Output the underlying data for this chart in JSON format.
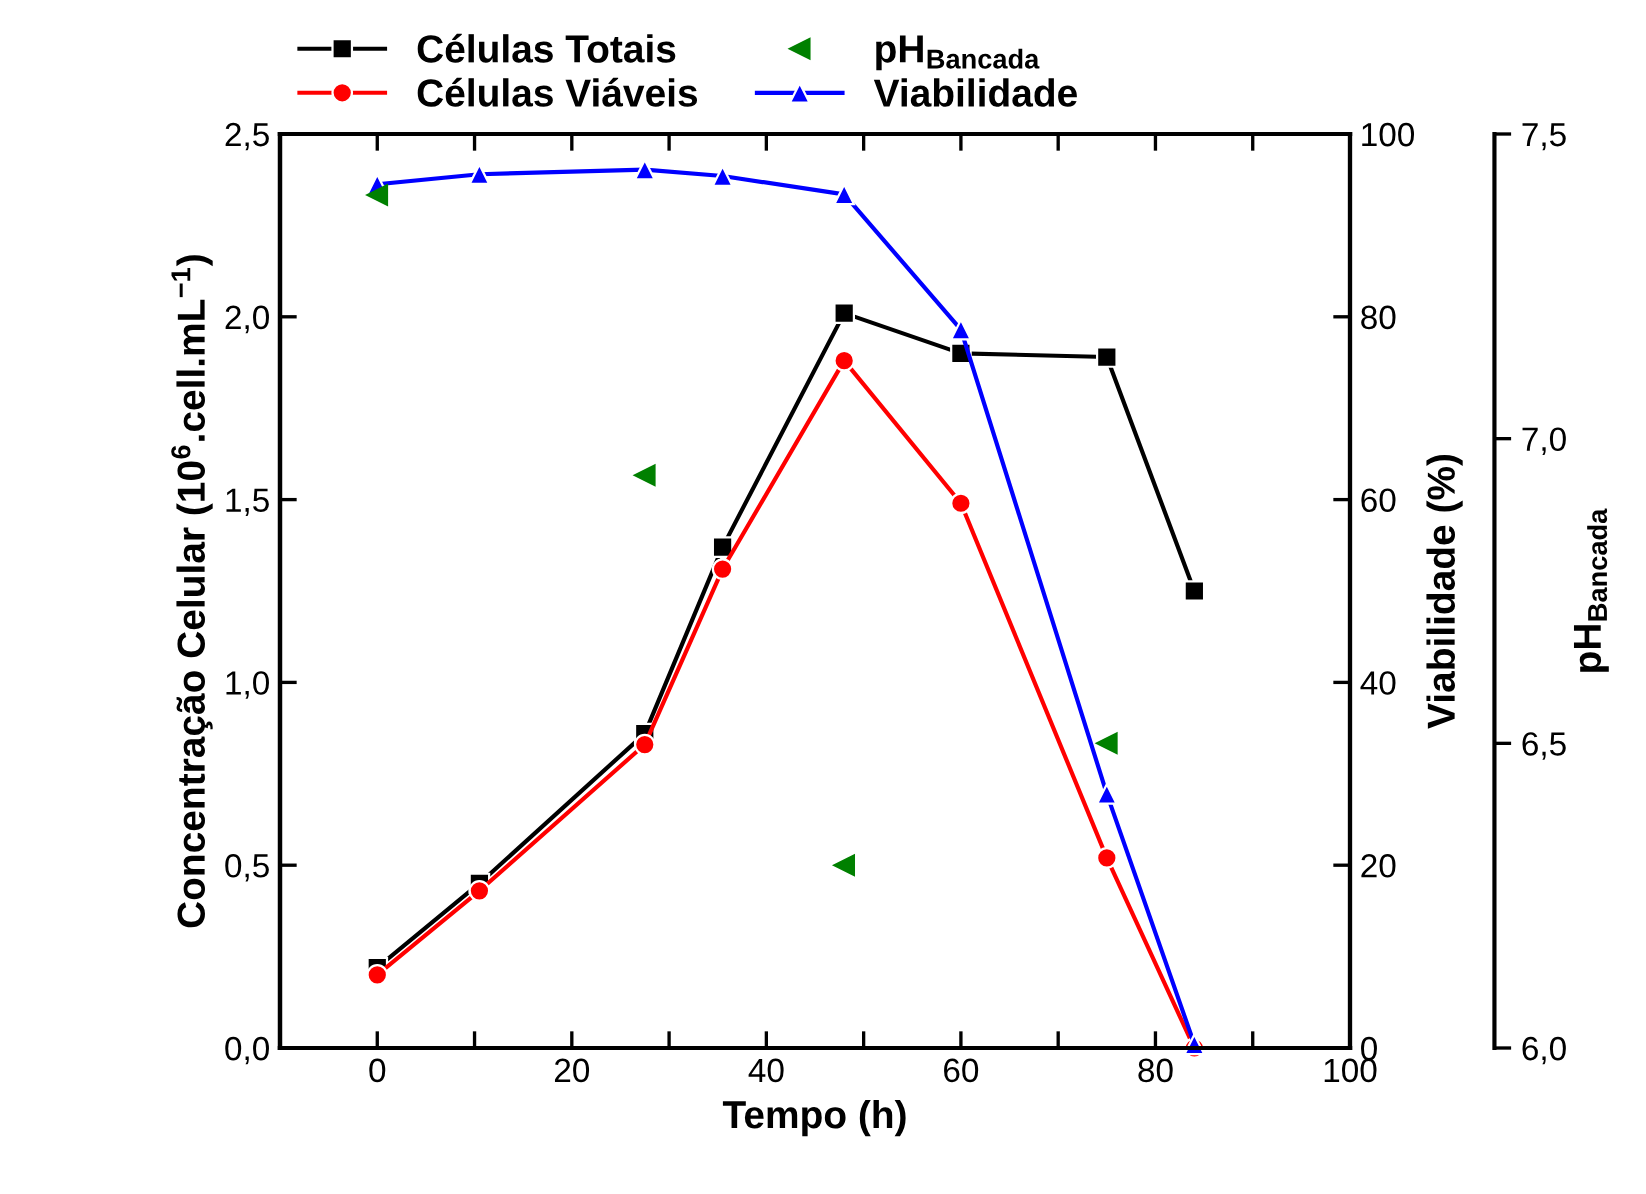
{
  "chart_data": {
    "type": "line",
    "xlabel": "Tempo (h)",
    "ylabel": "Concentração Celular (10$^{6}$.cell.mL$^{−1}$)",
    "y2label": "Viabilidade (%)",
    "y3label": "pH$_{Bancada}$",
    "xlim": [
      -10,
      100
    ],
    "xticks": [
      {
        "value": -10,
        "label": null
      },
      0,
      {
        "value": 10,
        "label": null
      },
      20,
      {
        "value": 30,
        "label": null
      },
      40,
      {
        "value": 50,
        "label": null
      },
      60,
      {
        "value": 70,
        "label": null
      },
      80,
      {
        "value": 90,
        "label": null
      },
      100
    ],
    "ylim": [
      0,
      2.5
    ],
    "yticks": [
      {
        "value": 0,
        "label": "0,0"
      },
      {
        "value": 0.5,
        "label": "0,5"
      },
      {
        "value": 1.0,
        "label": "1,0"
      },
      {
        "value": 1.5,
        "label": "1,5"
      },
      {
        "value": 2.0,
        "label": "2,0"
      },
      {
        "value": 2.5,
        "label": "2,5"
      }
    ],
    "y2lim": [
      0,
      100
    ],
    "y2ticks": [
      0,
      20,
      40,
      60,
      80,
      100
    ],
    "y3lim": [
      6.0,
      7.5
    ],
    "y3ticks": [
      {
        "value": 6.0,
        "label": "6,0"
      },
      {
        "value": 6.5,
        "label": "6,5"
      },
      {
        "value": 7.0,
        "label": "7,0"
      },
      {
        "value": 7.5,
        "label": "7,5"
      }
    ],
    "legend": "top",
    "grid": false,
    "series": [
      {
        "name": "Células Totais",
        "color": "#000000",
        "marker": "square",
        "x": [
          0,
          10.5,
          27.5,
          35.5,
          48,
          60,
          75,
          84
        ],
        "values": [
          0.22,
          0.45,
          0.86,
          1.37,
          2.01,
          1.9,
          1.89,
          1.25
        ]
      },
      {
        "name": "Células Viáveis",
        "color": "#ff0000",
        "marker": "circle",
        "x": [
          0,
          10.5,
          27.5,
          35.5,
          48,
          60,
          75,
          84
        ],
        "values": [
          0.2,
          0.43,
          0.83,
          1.31,
          1.88,
          1.49,
          0.52,
          0.0
        ]
      },
      {
        "name": "pH$_{Bancada}$",
        "type": "scatter",
        "axis": "y3",
        "color": "#008000",
        "marker": "triangle_left",
        "x": [
          0,
          27.5,
          48,
          75
        ],
        "values": [
          7.4,
          6.94,
          6.3,
          6.5
        ]
      },
      {
        "name": "Viabilidade",
        "axis": "y2",
        "color": "#0000ff",
        "marker": "triangle",
        "x": [
          0,
          10.5,
          27.5,
          35.5,
          48,
          60,
          75,
          84
        ],
        "values": [
          94.5,
          95.6,
          96.1,
          95.4,
          93.4,
          78.6,
          27.8,
          0.4
        ]
      }
    ]
  }
}
